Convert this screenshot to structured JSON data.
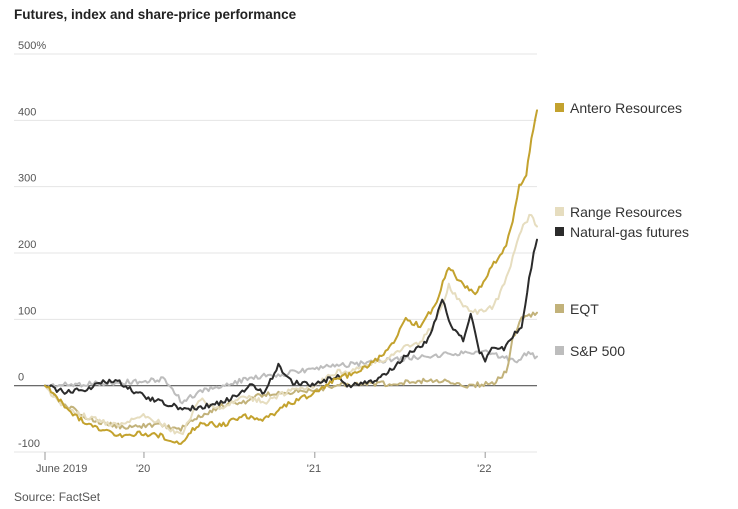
{
  "title": "Futures, index and share-price performance",
  "source": "Source: FactSet",
  "chart_data": {
    "type": "line",
    "title": "Futures, index and share-price performance",
    "xlabel": "",
    "ylabel": "",
    "x_range": [
      "2019-06-03",
      "2022-04-22"
    ],
    "ylim": [
      -100,
      500
    ],
    "y_ticks": [
      {
        "value": 500,
        "label": "500%"
      },
      {
        "value": 400,
        "label": "400"
      },
      {
        "value": 300,
        "label": "300"
      },
      {
        "value": 200,
        "label": "200"
      },
      {
        "value": 100,
        "label": "100"
      },
      {
        "value": 0,
        "label": "0"
      },
      {
        "value": -100,
        "label": "-100"
      }
    ],
    "x_ticks": [
      {
        "date": "2019-06-01",
        "label": "June 2019"
      },
      {
        "date": "2020-01-01",
        "label": "'20"
      },
      {
        "date": "2021-01-01",
        "label": "'21"
      },
      {
        "date": "2022-01-01",
        "label": "'22"
      }
    ],
    "grid": true,
    "legend_position": "right",
    "series": [
      {
        "name": "S&P 500",
        "color": "#bdbdbd",
        "points": [
          [
            "2019-06-03",
            0
          ],
          [
            "2019-09-15",
            3
          ],
          [
            "2019-12-31",
            7
          ],
          [
            "2020-02-15",
            10
          ],
          [
            "2020-03-23",
            -25
          ],
          [
            "2020-05-01",
            -8
          ],
          [
            "2020-07-01",
            3
          ],
          [
            "2020-09-01",
            14
          ],
          [
            "2020-11-01",
            18
          ],
          [
            "2021-01-01",
            26
          ],
          [
            "2021-04-01",
            33
          ],
          [
            "2021-07-01",
            40
          ],
          [
            "2021-09-01",
            44
          ],
          [
            "2021-11-15",
            50
          ],
          [
            "2022-01-03",
            52
          ],
          [
            "2022-02-20",
            40
          ],
          [
            "2022-03-10",
            38
          ],
          [
            "2022-03-30",
            48
          ],
          [
            "2022-04-22",
            44
          ]
        ]
      },
      {
        "name": "EQT",
        "color": "#c2b27a",
        "points": [
          [
            "2019-06-03",
            0
          ],
          [
            "2019-06-20",
            -15
          ],
          [
            "2019-07-20",
            -30
          ],
          [
            "2019-08-25",
            -45
          ],
          [
            "2019-10-01",
            -55
          ],
          [
            "2019-11-15",
            -62
          ],
          [
            "2019-12-31",
            -60
          ],
          [
            "2020-02-01",
            -60
          ],
          [
            "2020-03-20",
            -65
          ],
          [
            "2020-05-01",
            -45
          ],
          [
            "2020-06-15",
            -30
          ],
          [
            "2020-08-01",
            -25
          ],
          [
            "2020-09-01",
            -15
          ],
          [
            "2020-10-15",
            -10
          ],
          [
            "2020-12-01",
            -8
          ],
          [
            "2021-01-10",
            -5
          ],
          [
            "2021-02-15",
            0
          ],
          [
            "2021-04-01",
            2
          ],
          [
            "2021-06-01",
            3
          ],
          [
            "2021-08-01",
            6
          ],
          [
            "2021-09-15",
            8
          ],
          [
            "2021-10-15",
            5
          ],
          [
            "2021-11-15",
            0
          ],
          [
            "2021-12-20",
            2
          ],
          [
            "2022-01-20",
            5
          ],
          [
            "2022-02-15",
            20
          ],
          [
            "2022-03-01",
            70
          ],
          [
            "2022-03-20",
            100
          ],
          [
            "2022-04-05",
            105
          ],
          [
            "2022-04-22",
            110
          ]
        ]
      },
      {
        "name": "Range Resources",
        "color": "#e6ddbf",
        "points": [
          [
            "2019-06-03",
            0
          ],
          [
            "2019-06-25",
            -20
          ],
          [
            "2019-08-01",
            -40
          ],
          [
            "2019-09-15",
            -50
          ],
          [
            "2019-11-01",
            -60
          ],
          [
            "2019-12-31",
            -45
          ],
          [
            "2020-02-01",
            -55
          ],
          [
            "2020-03-20",
            -75
          ],
          [
            "2020-05-01",
            -20
          ],
          [
            "2020-06-15",
            -35
          ],
          [
            "2020-08-01",
            -15
          ],
          [
            "2020-09-15",
            -25
          ],
          [
            "2020-11-01",
            -10
          ],
          [
            "2021-01-01",
            0
          ],
          [
            "2021-02-15",
            20
          ],
          [
            "2021-04-01",
            25
          ],
          [
            "2021-06-01",
            40
          ],
          [
            "2021-07-15",
            60
          ],
          [
            "2021-08-15",
            65
          ],
          [
            "2021-09-15",
            95
          ],
          [
            "2021-10-15",
            150
          ],
          [
            "2021-11-15",
            120
          ],
          [
            "2021-12-15",
            110
          ],
          [
            "2022-01-20",
            120
          ],
          [
            "2022-02-20",
            170
          ],
          [
            "2022-03-15",
            230
          ],
          [
            "2022-04-01",
            250
          ],
          [
            "2022-04-10",
            260
          ],
          [
            "2022-04-22",
            240
          ]
        ]
      },
      {
        "name": "Natural-gas futures",
        "color": "#2b2b2b",
        "points": [
          [
            "2019-06-03",
            0
          ],
          [
            "2019-07-15",
            -10
          ],
          [
            "2019-09-01",
            -5
          ],
          [
            "2019-10-01",
            5
          ],
          [
            "2019-11-01",
            8
          ],
          [
            "2019-12-15",
            -10
          ],
          [
            "2020-01-15",
            -20
          ],
          [
            "2020-03-01",
            -30
          ],
          [
            "2020-04-01",
            -35
          ],
          [
            "2020-06-01",
            -28
          ],
          [
            "2020-07-01",
            -20
          ],
          [
            "2020-08-15",
            0
          ],
          [
            "2020-09-15",
            -10
          ],
          [
            "2020-10-15",
            30
          ],
          [
            "2020-11-15",
            5
          ],
          [
            "2020-12-31",
            0
          ],
          [
            "2021-02-15",
            15
          ],
          [
            "2021-03-15",
            0
          ],
          [
            "2021-05-01",
            5
          ],
          [
            "2021-06-15",
            25
          ],
          [
            "2021-07-15",
            45
          ],
          [
            "2021-08-15",
            60
          ],
          [
            "2021-09-01",
            70
          ],
          [
            "2021-10-01",
            130
          ],
          [
            "2021-10-20",
            90
          ],
          [
            "2021-11-15",
            70
          ],
          [
            "2021-12-01",
            110
          ],
          [
            "2021-12-20",
            50
          ],
          [
            "2022-01-01",
            40
          ],
          [
            "2022-01-20",
            60
          ],
          [
            "2022-02-10",
            55
          ],
          [
            "2022-03-01",
            75
          ],
          [
            "2022-03-20",
            90
          ],
          [
            "2022-04-05",
            160
          ],
          [
            "2022-04-15",
            200
          ],
          [
            "2022-04-22",
            220
          ]
        ]
      },
      {
        "name": "Antero Resources",
        "color": "#c3a22e",
        "points": [
          [
            "2019-06-03",
            0
          ],
          [
            "2019-06-20",
            -10
          ],
          [
            "2019-07-15",
            -30
          ],
          [
            "2019-08-15",
            -50
          ],
          [
            "2019-10-01",
            -65
          ],
          [
            "2019-11-15",
            -75
          ],
          [
            "2019-12-31",
            -72
          ],
          [
            "2020-02-01",
            -75
          ],
          [
            "2020-03-20",
            -85
          ],
          [
            "2020-05-01",
            -55
          ],
          [
            "2020-06-15",
            -60
          ],
          [
            "2020-08-01",
            -45
          ],
          [
            "2020-09-15",
            -50
          ],
          [
            "2020-11-01",
            -30
          ],
          [
            "2021-01-01",
            -10
          ],
          [
            "2021-02-15",
            10
          ],
          [
            "2021-04-01",
            20
          ],
          [
            "2021-05-15",
            40
          ],
          [
            "2021-06-15",
            60
          ],
          [
            "2021-07-15",
            100
          ],
          [
            "2021-08-15",
            90
          ],
          [
            "2021-09-15",
            120
          ],
          [
            "2021-10-15",
            180
          ],
          [
            "2021-11-15",
            150
          ],
          [
            "2021-12-15",
            140
          ],
          [
            "2022-01-15",
            180
          ],
          [
            "2022-02-15",
            210
          ],
          [
            "2022-03-01",
            250
          ],
          [
            "2022-03-15",
            300
          ],
          [
            "2022-03-30",
            320
          ],
          [
            "2022-04-10",
            370
          ],
          [
            "2022-04-22",
            415
          ]
        ]
      }
    ]
  }
}
